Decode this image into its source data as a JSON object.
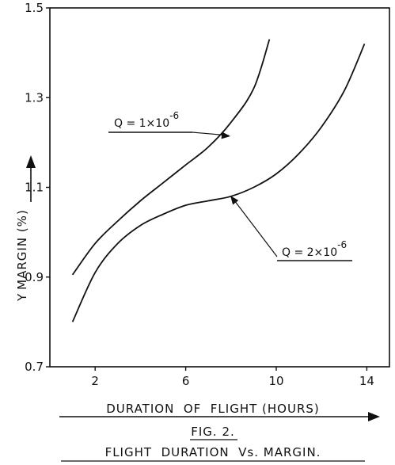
{
  "chart_data": {
    "type": "line",
    "title": "FLIGHT  DURATION  Vs. MARGIN.",
    "figure_label": "FIG. 2.",
    "xlabel": "DURATION  OF  FLIGHT (HOURS)",
    "ylabel_symbol": "Y",
    "ylabel": "MARGIN (%)",
    "xlim": [
      0,
      15
    ],
    "ylim": [
      0.7,
      1.5
    ],
    "xticks": [
      "2",
      "6",
      "10",
      "14"
    ],
    "yticks": [
      "0.7",
      "0.9",
      "1.1",
      "1.3",
      "1.5"
    ],
    "series": [
      {
        "name": "Q = 1×10^-6",
        "name_base": "Q = 1×10",
        "name_exp": "-6",
        "x": [
          1,
          2,
          3,
          4,
          5,
          6,
          7,
          8,
          9,
          9.7
        ],
        "y": [
          0.905,
          0.975,
          1.025,
          1.07,
          1.11,
          1.15,
          1.19,
          1.245,
          1.32,
          1.43
        ]
      },
      {
        "name": "Q = 2×10^-6",
        "name_base": "Q = 2×10",
        "name_exp": "-6",
        "x": [
          1,
          2,
          3,
          4,
          5,
          6,
          7,
          8,
          9,
          10,
          11,
          12,
          13,
          13.9
        ],
        "y": [
          0.8,
          0.91,
          0.975,
          1.015,
          1.04,
          1.06,
          1.07,
          1.08,
          1.1,
          1.13,
          1.175,
          1.235,
          1.315,
          1.42
        ]
      }
    ],
    "grid": false,
    "legend": "none"
  }
}
